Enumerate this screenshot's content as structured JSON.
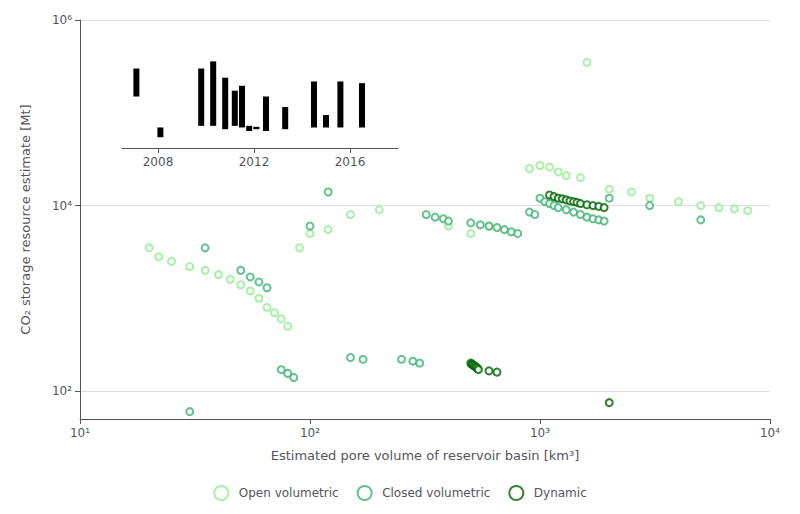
{
  "chart_data": [
    {
      "type": "scatter",
      "xlabel": "Estimated pore volume of reservoir basin [km³]",
      "ylabel": "CO₂ storage resource estimate [Mt]",
      "log": true,
      "xlim": [
        10,
        10000
      ],
      "ylim": [
        50,
        1000000
      ],
      "xticks": [
        {
          "value": 10,
          "label": "10¹"
        },
        {
          "value": 100,
          "label": "10²"
        },
        {
          "value": 1000,
          "label": "10³"
        },
        {
          "value": 10000,
          "label": "10⁴"
        }
      ],
      "yticks": [
        {
          "value": 100,
          "label": "10²"
        },
        {
          "value": 10000,
          "label": "10⁴"
        },
        {
          "value": 1000000,
          "label": "10⁶"
        }
      ],
      "grid": "y",
      "legend": "bottom",
      "marker": "open_circle",
      "series": [
        {
          "name": "Open volumetric",
          "color": "#90EE90",
          "x": [
            20,
            22,
            25,
            30,
            35,
            40,
            45,
            50,
            55,
            60,
            65,
            70,
            75,
            80,
            90,
            100,
            120,
            150,
            200,
            400,
            500,
            600,
            900,
            1000,
            1100,
            1200,
            1300,
            1500,
            1600,
            2000,
            2500,
            3000,
            4000,
            5000,
            6000,
            7000,
            8000
          ],
          "values": [
            3500,
            2800,
            2500,
            2200,
            2000,
            1800,
            1600,
            1400,
            1200,
            1000,
            800,
            700,
            600,
            500,
            3500,
            5000,
            5500,
            8000,
            9000,
            6000,
            5000,
            6000,
            25000,
            27000,
            26000,
            23000,
            21000,
            20000,
            350000,
            15000,
            14000,
            12000,
            11000,
            10000,
            9500,
            9200,
            8800
          ]
        },
        {
          "name": "Closed volumetric",
          "color": "#3CB371",
          "x": [
            30,
            35,
            50,
            55,
            60,
            65,
            75,
            80,
            85,
            100,
            120,
            150,
            170,
            250,
            280,
            300,
            320,
            350,
            380,
            400,
            500,
            550,
            600,
            650,
            700,
            750,
            800,
            900,
            950,
            1000,
            1050,
            1100,
            1150,
            1200,
            1300,
            1400,
            1500,
            1600,
            1700,
            1800,
            1900,
            2000,
            3000,
            5000
          ],
          "values": [
            60,
            3500,
            2000,
            1700,
            1500,
            1300,
            170,
            155,
            140,
            6000,
            14000,
            230,
            220,
            220,
            210,
            200,
            8000,
            7500,
            7200,
            6800,
            6500,
            6200,
            6000,
            5800,
            5500,
            5200,
            5000,
            8500,
            8000,
            12000,
            11000,
            10500,
            10000,
            9500,
            9000,
            8500,
            8000,
            7500,
            7200,
            7000,
            6800,
            12000,
            10000,
            7000
          ]
        },
        {
          "name": "Dynamic",
          "color": "#006400",
          "x": [
            500,
            505,
            510,
            515,
            520,
            525,
            530,
            535,
            540,
            600,
            650,
            1100,
            1150,
            1200,
            1250,
            1300,
            1350,
            1400,
            1450,
            1500,
            1600,
            1700,
            1800,
            1900,
            2000
          ],
          "values": [
            200,
            195,
            192,
            190,
            185,
            182,
            180,
            175,
            170,
            165,
            160,
            13000,
            12500,
            12000,
            11800,
            11500,
            11200,
            11000,
            10800,
            10500,
            10200,
            10000,
            9800,
            9500,
            75
          ]
        }
      ]
    },
    {
      "type": "range_bar",
      "log": "y",
      "xlim": [
        2006.5,
        2018
      ],
      "ylim": [
        5000,
        200000
      ],
      "xticks": [
        2008,
        2012,
        2016
      ],
      "tick_labels": "x",
      "color": "#000000",
      "x": [
        2007.1,
        2008.1,
        2009.8,
        2010.3,
        2010.8,
        2011.2,
        2011.5,
        2011.8,
        2012.1,
        2012.5,
        2013.3,
        2014.5,
        2015.0,
        2015.6,
        2016.5
      ],
      "low": [
        25000,
        7000,
        10000,
        10000,
        9000,
        10000,
        9500,
        8500,
        9000,
        8500,
        9000,
        9500,
        9500,
        9500,
        9500
      ],
      "high": [
        60000,
        9500,
        60000,
        75000,
        45000,
        30000,
        35000,
        10000,
        9700,
        25000,
        18000,
        40000,
        14000,
        40000,
        38000
      ]
    }
  ]
}
